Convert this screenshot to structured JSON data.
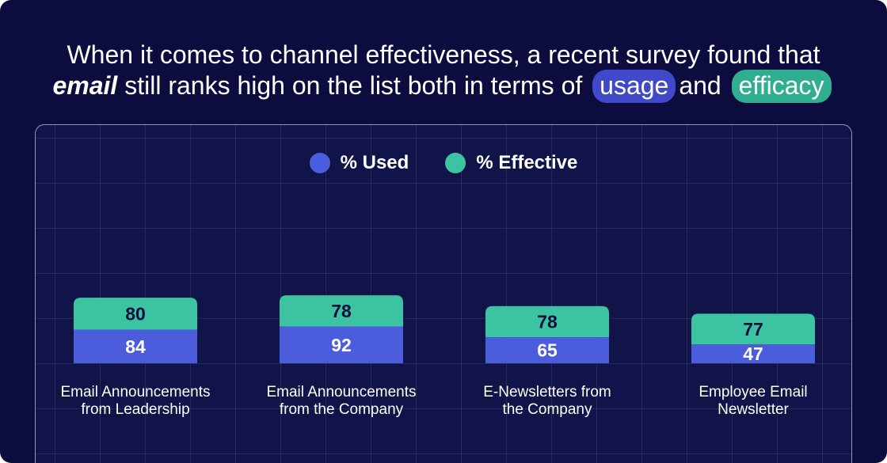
{
  "headline": {
    "line1": "When it comes to channel effectiveness, a recent survey found that",
    "line2_em": "email",
    "line2_text": " still ranks high on the list both in terms of",
    "pill_usage": "usage",
    "and_word": "and",
    "pill_efficacy": "efficacy"
  },
  "colors": {
    "background": "#0c0d3e",
    "used": "#4b5cdc",
    "effective": "#3cc4a2",
    "pill_usage": "#3f49c9",
    "pill_efficacy": "#2fae92"
  },
  "chart_data": {
    "type": "bar",
    "stacked": true,
    "legend_position": "top-center",
    "grid": true,
    "categories": [
      "Email Announcements from Leadership",
      "Email Announcements from the Company",
      "E-Newsletters from the Company",
      "Employee Email Newsletter"
    ],
    "series": [
      {
        "name": "% Used",
        "color": "#4b5cdc",
        "values": [
          84,
          92,
          65,
          47
        ]
      },
      {
        "name": "% Effective",
        "color": "#3cc4a2",
        "values": [
          80,
          78,
          78,
          77
        ]
      }
    ],
    "category_labels": [
      [
        "Email Announcements",
        "from Leadership"
      ],
      [
        "Email Announcements",
        "from the Company"
      ],
      [
        "E-Newsletters from",
        "the Company"
      ],
      [
        "Employee Email",
        "Newsletter"
      ]
    ]
  }
}
